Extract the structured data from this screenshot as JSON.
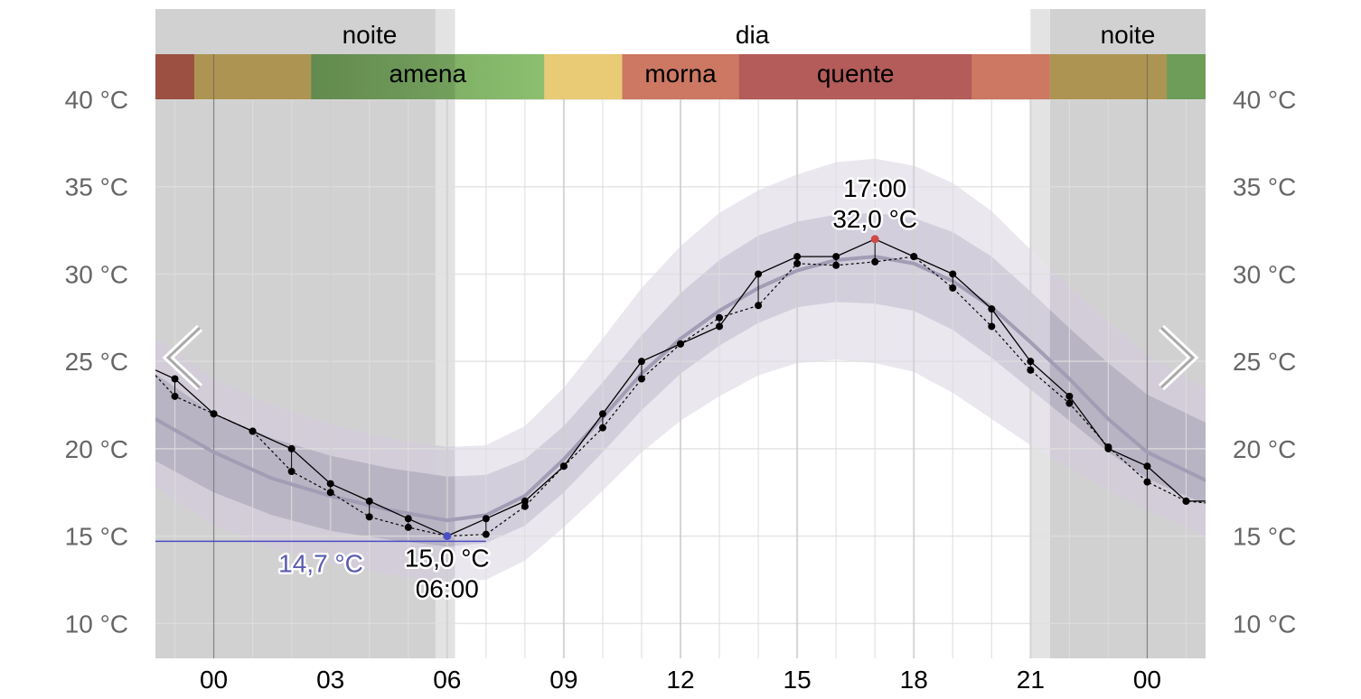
{
  "chart_data": {
    "type": "line",
    "y_unit": "°C",
    "ylim": [
      8,
      40
    ],
    "y_ticks": [
      {
        "value": 10,
        "label": "10 °C"
      },
      {
        "value": 15,
        "label": "15 °C"
      },
      {
        "value": 20,
        "label": "20 °C"
      },
      {
        "value": 25,
        "label": "25 °C"
      },
      {
        "value": 30,
        "label": "30 °C"
      },
      {
        "value": 35,
        "label": "35 °C"
      },
      {
        "value": 40,
        "label": "40 °C"
      }
    ],
    "x_range_hours": [
      -1.5,
      25.5
    ],
    "x_ticks": [
      {
        "hour": 0,
        "label": "00"
      },
      {
        "hour": 3,
        "label": "03"
      },
      {
        "hour": 6,
        "label": "06"
      },
      {
        "hour": 9,
        "label": "09"
      },
      {
        "hour": 12,
        "label": "12"
      },
      {
        "hour": 15,
        "label": "15"
      },
      {
        "hour": 18,
        "label": "18"
      },
      {
        "hour": 21,
        "label": "21"
      },
      {
        "hour": 24,
        "label": "00"
      }
    ],
    "day_night": [
      {
        "label": "noite",
        "start": -1.5,
        "end": 6.2
      },
      {
        "label": "dia",
        "start": 6.2,
        "end": 21.5
      },
      {
        "label": "noite",
        "start": 21.5,
        "end": 25.5
      }
    ],
    "twilight": [
      {
        "start": 5.7,
        "end": 6.2
      },
      {
        "start": 21.0,
        "end": 21.5
      }
    ],
    "comfort_bands": [
      {
        "start": -1.5,
        "end": -0.5,
        "color": "#ad5a4a",
        "label": ""
      },
      {
        "start": -0.5,
        "end": 2.5,
        "color": "#c2a55c",
        "label": ""
      },
      {
        "start": 2.5,
        "end": 8.5,
        "color": "#7aaf63",
        "label": "amena"
      },
      {
        "start": 8.5,
        "end": 10.5,
        "color": "#e8cb74",
        "label": ""
      },
      {
        "start": 10.5,
        "end": 13.5,
        "color": "#cc7862",
        "label": "morna"
      },
      {
        "start": 13.5,
        "end": 19.5,
        "color": "#b35c5a",
        "label": "quente"
      },
      {
        "start": 19.5,
        "end": 21.5,
        "color": "#cc7862",
        "label": ""
      },
      {
        "start": 21.5,
        "end": 24.5,
        "color": "#c2a55c",
        "label": ""
      },
      {
        "start": 24.5,
        "end": 25.5,
        "color": "#7aaf63",
        "label": ""
      }
    ],
    "envelope_outer": {
      "x": [
        -1.5,
        0,
        1.5,
        3,
        4.5,
        6,
        7,
        8,
        9,
        10,
        11,
        12,
        13,
        14,
        15,
        16,
        17,
        18,
        19,
        20,
        21,
        22,
        23,
        24,
        25.5
      ],
      "lower": [
        17.8,
        15.6,
        14.3,
        13.4,
        12.8,
        12.4,
        12.5,
        13.6,
        15.5,
        17.6,
        19.8,
        21.6,
        23.0,
        24.2,
        24.9,
        25.1,
        24.9,
        24.4,
        23.2,
        21.7,
        20.2,
        18.9,
        17.6,
        16.5,
        15.0
      ],
      "upper": [
        26.4,
        24.0,
        22.5,
        21.4,
        20.6,
        20.1,
        20.2,
        21.3,
        23.5,
        26.3,
        29.2,
        31.6,
        33.5,
        34.8,
        35.7,
        36.4,
        36.6,
        36.2,
        35.2,
        33.6,
        31.4,
        29.3,
        27.3,
        25.4,
        23.5
      ]
    },
    "envelope_inner": {
      "x": [
        -1.5,
        0,
        1.5,
        3,
        4.5,
        6,
        7,
        8,
        9,
        10,
        11,
        12,
        13,
        14,
        15,
        16,
        17,
        18,
        19,
        20,
        21,
        22,
        23,
        24,
        25.5
      ],
      "lower": [
        19.3,
        17.5,
        16.2,
        15.3,
        14.8,
        14.4,
        14.6,
        15.6,
        17.5,
        19.8,
        22.2,
        24.3,
        25.9,
        27.2,
        28.1,
        28.4,
        28.3,
        27.9,
        26.8,
        25.2,
        23.4,
        21.6,
        19.8,
        18.3,
        16.8
      ],
      "upper": [
        24.3,
        22.0,
        20.6,
        19.6,
        18.9,
        18.4,
        18.5,
        19.4,
        21.3,
        23.8,
        26.5,
        28.9,
        30.8,
        32.2,
        33.0,
        33.4,
        33.5,
        33.2,
        32.4,
        31.0,
        29.0,
        26.9,
        24.9,
        23.1,
        21.5
      ]
    },
    "mean_line": {
      "x": [
        -1.5,
        0,
        1.5,
        3,
        4.5,
        6,
        7,
        8,
        9,
        10,
        11,
        12,
        13,
        14,
        15,
        16,
        17,
        18,
        19,
        20,
        21,
        22,
        23,
        24,
        25.5
      ],
      "y": [
        21.7,
        19.8,
        18.3,
        17.3,
        16.5,
        15.9,
        16.2,
        17.3,
        19.4,
        21.8,
        24.3,
        26.3,
        27.9,
        29.2,
        30.2,
        30.8,
        31.0,
        30.6,
        29.6,
        28.1,
        26.1,
        24.0,
        21.7,
        19.8,
        18.2
      ]
    },
    "series": [
      {
        "x": [
          -1.5,
          -1,
          0,
          1,
          2,
          3,
          4,
          5,
          6,
          7,
          8,
          9,
          10,
          11,
          12,
          13,
          14,
          15,
          16,
          17,
          18,
          19,
          20,
          21,
          22,
          23,
          24,
          25,
          25.5
        ],
        "y": [
          24.5,
          24.0,
          22.0,
          21.0,
          20.0,
          18.0,
          17.0,
          16.0,
          15.0,
          16.0,
          17.0,
          19.0,
          22.0,
          25.0,
          26.0,
          27.0,
          30.0,
          31.0,
          31.0,
          32.0,
          31.0,
          30.0,
          28.0,
          25.0,
          23.0,
          20.0,
          19.0,
          17.0,
          17.0
        ]
      },
      {
        "x": [
          -1.5,
          -1,
          0,
          1,
          2,
          3,
          4,
          5,
          6,
          7,
          8,
          9,
          10,
          11,
          12,
          13,
          14,
          15,
          16,
          17,
          18,
          19,
          20,
          21,
          22,
          23,
          24,
          25,
          25.5
        ],
        "y": [
          24.2,
          23.0,
          22.0,
          21.0,
          18.7,
          17.5,
          16.1,
          15.5,
          15.0,
          15.1,
          16.7,
          19.0,
          21.2,
          24.0,
          26.0,
          27.5,
          28.2,
          30.6,
          30.5,
          30.7,
          31.0,
          29.2,
          27.0,
          24.5,
          22.6,
          20.1,
          18.1,
          17.0,
          16.9
        ]
      }
    ],
    "min_reference": {
      "value": 14.7,
      "start": -1.5,
      "end": 7,
      "label": "14,7 °C"
    },
    "min_point": {
      "hour": 6,
      "value": 15.0,
      "time_label": "06:00",
      "value_label": "15,0 °C"
    },
    "max_point": {
      "hour": 17,
      "value": 32.0,
      "time_label": "17:00",
      "value_label": "32,0 °C"
    },
    "colors": {
      "night_shade": "#d1d1d1",
      "twilight_shade": "#e3e3e3",
      "envelope_outer": "#e6e3ec",
      "envelope_inner": "#cfcbd9",
      "envelope_night_overlay": "#a49fb0",
      "mean_line": "#a29cb4",
      "observed": "#000000",
      "min_marker": "#4d4dc4",
      "max_marker": "#d04848",
      "grid": "#dedede",
      "nav_arrow": "#a9a9a9"
    }
  },
  "nav": {
    "previous_icon": "chevron-left",
    "next_icon": "chevron-right"
  }
}
